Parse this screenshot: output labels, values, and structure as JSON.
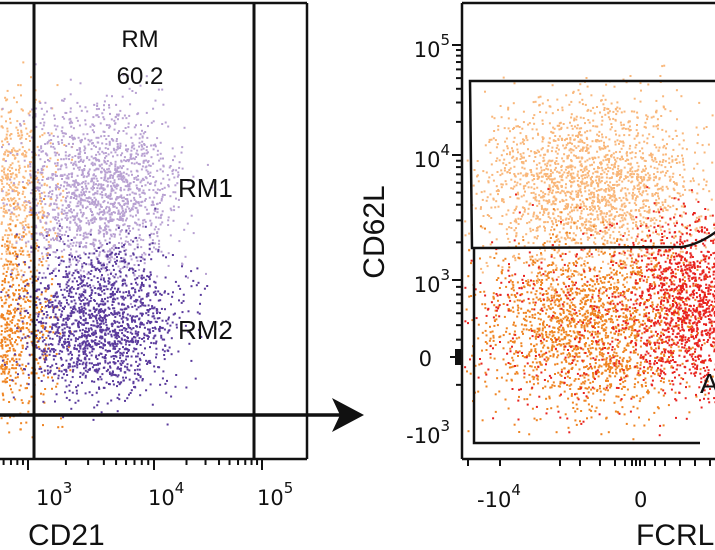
{
  "chart_data": [
    {
      "type": "scatter",
      "panel": "left",
      "xlabel": "CD21",
      "x_tick_labels": [
        {
          "base": "10",
          "exp": "3"
        },
        {
          "base": "10",
          "exp": "4"
        },
        {
          "base": "10",
          "exp": "5"
        }
      ],
      "x_scale": "log",
      "gate": {
        "name": "RM",
        "value": "60.2"
      },
      "populations": [
        {
          "name": "RM1",
          "color": "#b8a1d2"
        },
        {
          "name": "RM2",
          "color": "#5a3a9c"
        },
        {
          "name": "",
          "color": "#f9b77a"
        },
        {
          "name": "",
          "color": "#ef8422"
        }
      ]
    },
    {
      "type": "scatter",
      "panel": "right",
      "xlabel": "FCRL",
      "ylabel": "CD62L",
      "x_tick_labels": [
        {
          "base": "-10",
          "exp": "4"
        },
        {
          "base": "0",
          "exp": ""
        }
      ],
      "y_tick_labels": [
        {
          "base": "10",
          "exp": "5"
        },
        {
          "base": "10",
          "exp": "4"
        },
        {
          "base": "10",
          "exp": "3"
        },
        {
          "base": "0",
          "exp": ""
        },
        {
          "base": "-10",
          "exp": "3"
        }
      ],
      "y_scale": "biexponential",
      "gate_label": "A",
      "populations": [
        {
          "name": "",
          "color": "#f9b77a"
        },
        {
          "name": "",
          "color": "#ef8422"
        },
        {
          "name": "",
          "color": "#e8231f"
        }
      ]
    }
  ]
}
